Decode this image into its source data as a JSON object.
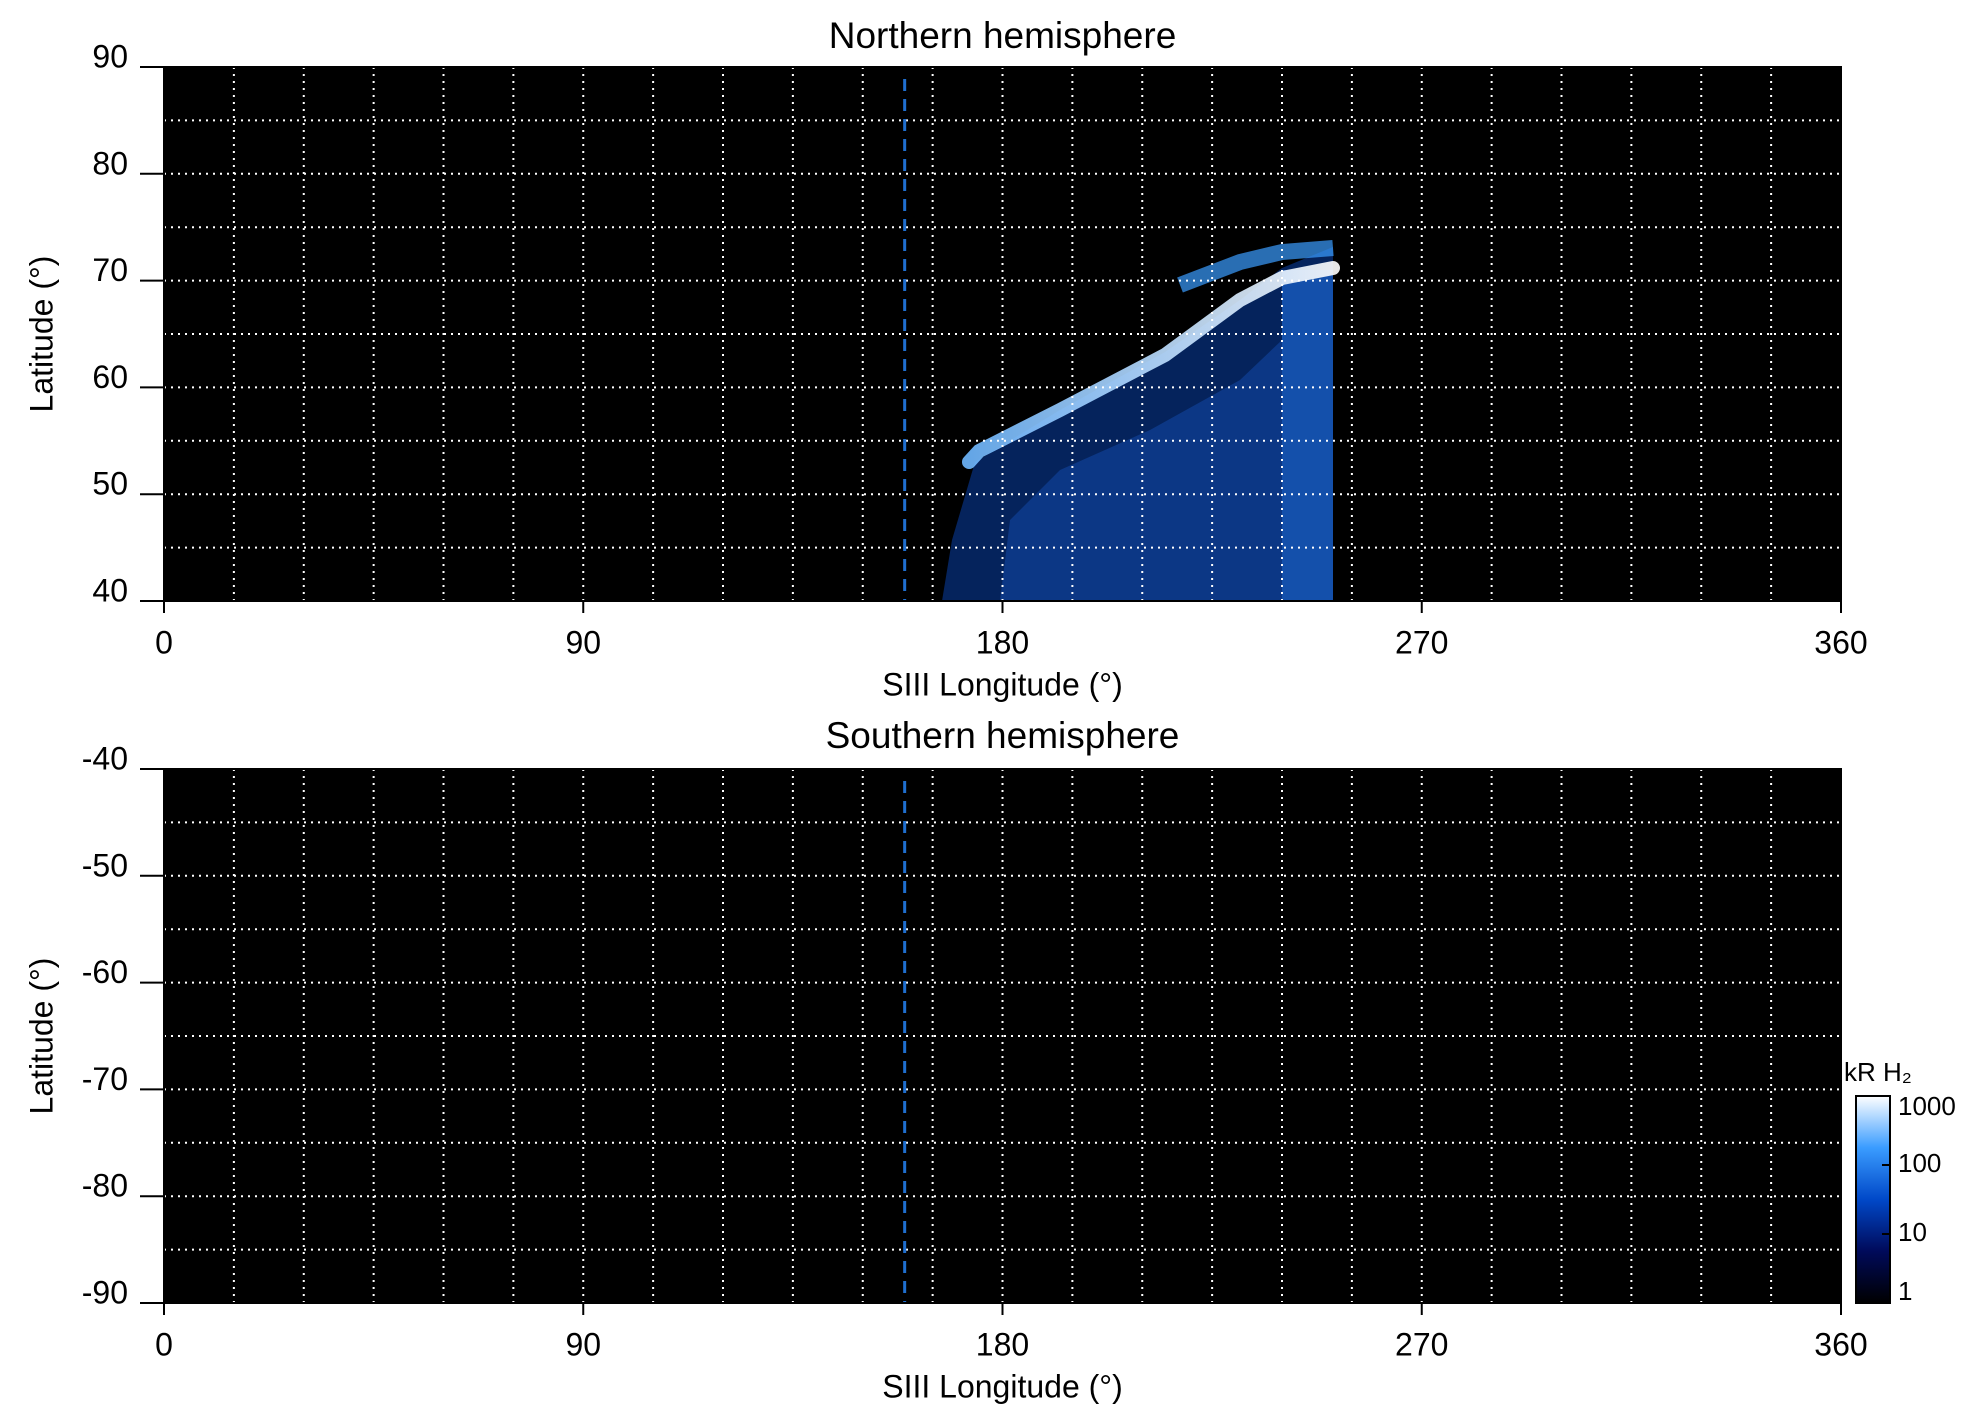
{
  "chart_data": [
    {
      "type": "heatmap",
      "title": "Northern hemisphere",
      "x_label": "SIII Longitude (°)",
      "y_label": "Latitude (°)",
      "xlim": [
        0,
        360
      ],
      "xticks": [
        0,
        90,
        180,
        270,
        360
      ],
      "ylim": [
        40,
        90
      ],
      "yticks": [
        40,
        50,
        60,
        70,
        80,
        90
      ],
      "xgrid": [
        15,
        30,
        45,
        60,
        75,
        90,
        105,
        120,
        135,
        150,
        165,
        180,
        195,
        210,
        225,
        240,
        255,
        270,
        285,
        300,
        315,
        330,
        345
      ],
      "ygrid": [
        45,
        50,
        55,
        60,
        65,
        70,
        75,
        80,
        85
      ],
      "reference_longitude": 159,
      "reference_color": "#1f6fd0",
      "background": "#000000",
      "grid_color": "#ffffff"
    },
    {
      "type": "heatmap",
      "title": "Southern hemisphere",
      "x_label": "SIII Longitude (°)",
      "y_label": "Latitude (°)",
      "xlim": [
        0,
        360
      ],
      "xticks": [
        0,
        90,
        180,
        270,
        360
      ],
      "ylim": [
        -90,
        -40
      ],
      "yticks": [
        -90,
        -80,
        -70,
        -60,
        -50,
        -40
      ],
      "xgrid": [
        15,
        30,
        45,
        60,
        75,
        90,
        105,
        120,
        135,
        150,
        165,
        180,
        195,
        210,
        225,
        240,
        255,
        270,
        285,
        300,
        315,
        330,
        345
      ],
      "ygrid": [
        -85,
        -80,
        -75,
        -70,
        -65,
        -60,
        -55,
        -50,
        -45
      ],
      "reference_longitude": 159,
      "reference_color": "#1f6fd0",
      "background": "#000000",
      "grid_color": "#ffffff",
      "colorbar": {
        "label": "kR H₂",
        "log": true,
        "lim": [
          1,
          1000
        ],
        "ticks": [
          1,
          10,
          100,
          1000
        ],
        "colors": [
          "#000000",
          "#000a5a",
          "#0048c8",
          "#3a9cff",
          "#ffffff"
        ]
      }
    }
  ]
}
